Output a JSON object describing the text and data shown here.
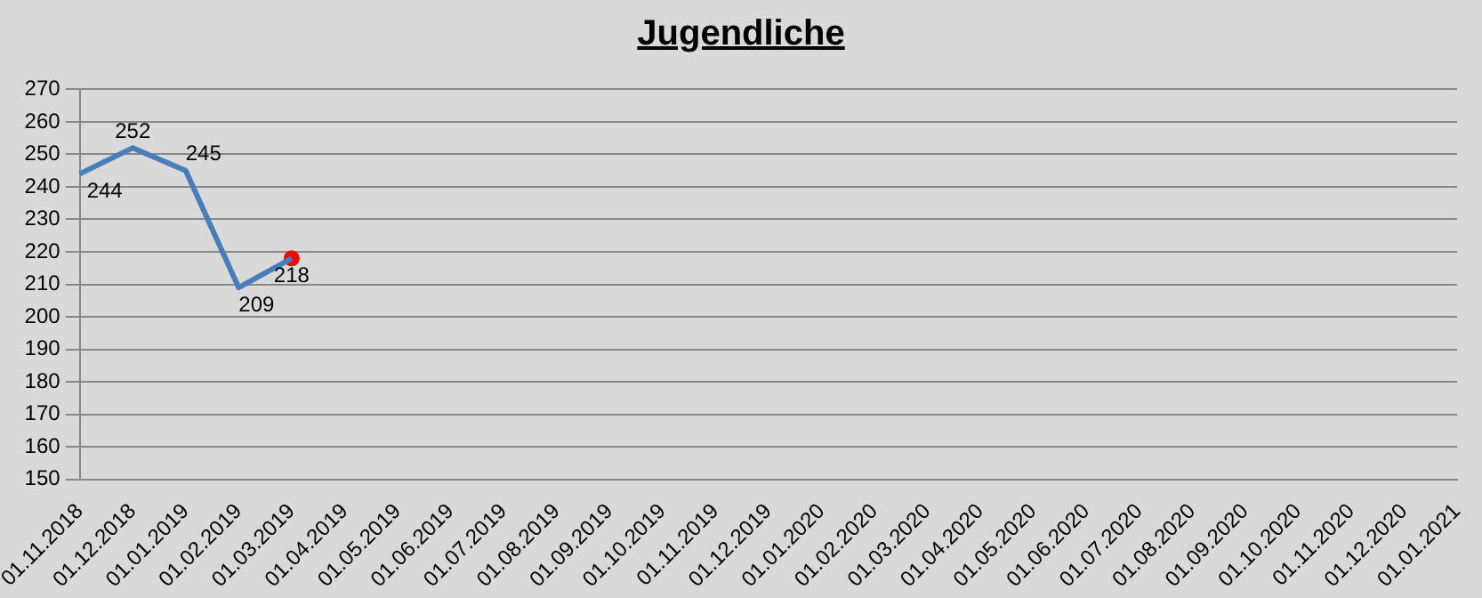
{
  "chart_data": {
    "type": "line",
    "title": "Jugendliche",
    "categories": [
      "01.11.2018",
      "01.12.2018",
      "01.01.2019",
      "01.02.2019",
      "01.03.2019",
      "01.04.2019",
      "01.05.2019",
      "01.06.2019",
      "01.07.2019",
      "01.08.2019",
      "01.09.2019",
      "01.10.2019",
      "01.11.2019",
      "01.12.2019",
      "01.01.2020",
      "01.02.2020",
      "01.03.2020",
      "01.04.2020",
      "01.05.2020",
      "01.06.2020",
      "01.07.2020",
      "01.08.2020",
      "01.09.2020",
      "01.10.2020",
      "01.11.2020",
      "01.12.2020",
      "01.01.2021"
    ],
    "series": [
      {
        "marker": "none",
        "color": "#4a7ebb",
        "values": [
          244,
          252,
          245,
          209,
          218,
          null,
          null,
          null,
          null,
          null,
          null,
          null,
          null,
          null,
          null,
          null,
          null,
          null,
          null,
          null,
          null,
          null,
          null,
          null,
          null,
          null,
          null
        ],
        "value_labels": [
          "244",
          "252",
          "245",
          "209",
          "218",
          null,
          null,
          null,
          null,
          null,
          null,
          null,
          null,
          null,
          null,
          null,
          null,
          null,
          null,
          null,
          null,
          null,
          null,
          null,
          null,
          null,
          null
        ]
      },
      {
        "type": "scatter",
        "marker": "circle",
        "color": "#ff0000",
        "x": [
          "01.03.2019"
        ],
        "values": [
          218
        ]
      }
    ],
    "ylim": [
      150,
      270
    ],
    "yticks": [
      150,
      160,
      170,
      180,
      190,
      200,
      210,
      220,
      230,
      240,
      250,
      260,
      270
    ],
    "grid": "y",
    "legend": false,
    "line_style": "solid"
  }
}
